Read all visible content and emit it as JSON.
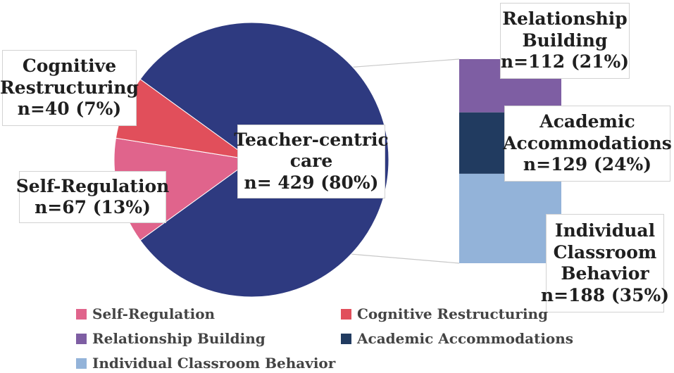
{
  "chart_data": {
    "type": "pie",
    "title": "",
    "main_pie": [
      {
        "name": "Teacher-centric care",
        "value": 429,
        "percent": 80,
        "color": "#2e3a80",
        "label_lines": [
          "Teacher-centric",
          "care",
          "n= 429 (80%)"
        ]
      },
      {
        "name": "Self-Regulation",
        "value": 67,
        "percent": 13,
        "color": "#e0648c",
        "label_lines": [
          "Self-Regulation",
          "n=67 (13%)"
        ]
      },
      {
        "name": "Cognitive Restructuring",
        "value": 40,
        "percent": 7,
        "color": "#e14f5b",
        "label_lines": [
          "Cognitive",
          "Restructuring",
          "n=40 (7%)"
        ]
      }
    ],
    "breakdown_of": "Teacher-centric care",
    "breakdown_bar": [
      {
        "name": "Relationship Building",
        "value": 112,
        "percent": 21,
        "color": "#7e5ea3",
        "label_lines": [
          "Relationship",
          "Building",
          "n=112 (21%)"
        ]
      },
      {
        "name": "Academic Accommodations",
        "value": 129,
        "percent": 24,
        "color": "#213b60",
        "label_lines": [
          "Academic",
          "Accommodations",
          "n=129 (24%)"
        ]
      },
      {
        "name": "Individual Classroom Behavior",
        "value": 188,
        "percent": 35,
        "color": "#93b3d9",
        "label_lines": [
          "Individual",
          "Classroom",
          "Behavior",
          "n=188 (35%)"
        ]
      }
    ],
    "legend": [
      "Self-Regulation",
      "Cognitive Restructuring",
      "Relationship Building",
      "Academic Accommodations",
      "Individual Classroom Behavior"
    ],
    "legend_colors": [
      "#e0648c",
      "#e14f5b",
      "#7e5ea3",
      "#213b60",
      "#93b3d9"
    ]
  }
}
